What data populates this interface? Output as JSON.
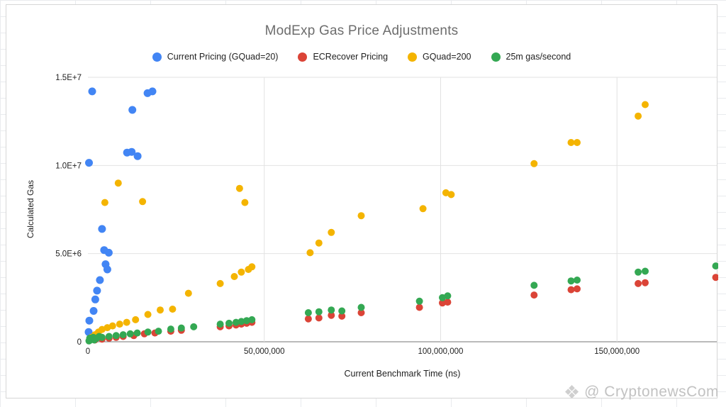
{
  "title": "ModExp Gas Price Adjustments",
  "watermark": {
    "icon": "❖",
    "text": "@ CryptonewsCom"
  },
  "chart_data": {
    "type": "scatter",
    "title": "ModExp Gas Price Adjustments",
    "xlabel": "Current Benchmark Time (ns)",
    "ylabel": "Calculated Gas",
    "xlim": [
      0,
      178300000
    ],
    "ylim": [
      0,
      15000000
    ],
    "grid": true,
    "legend_position": "top",
    "xticks": [
      {
        "v": 0,
        "label": "0"
      },
      {
        "v": 50000000,
        "label": "50,000,000"
      },
      {
        "v": 100000000,
        "label": "100,000,000"
      },
      {
        "v": 150000000,
        "label": "150,000,000"
      }
    ],
    "yticks": [
      {
        "v": 0,
        "label": "0"
      },
      {
        "v": 5000000,
        "label": "5.0E+6"
      },
      {
        "v": 10000000,
        "label": "1.0E+7"
      },
      {
        "v": 15000000,
        "label": "1.5E+7"
      }
    ],
    "series": [
      {
        "key": "current-pricing",
        "name": "Current Pricing (GQuad=20)",
        "color": "#4285f4",
        "radius": 5.5,
        "points": [
          [
            1200000.0,
            14200000.0
          ],
          [
            12600000.0,
            13150000.0
          ],
          [
            16900000.0,
            14100000.0
          ],
          [
            18300000.0,
            14200000.0
          ],
          [
            300000.0,
            10150000.0
          ],
          [
            11100000.0,
            10730000.0
          ],
          [
            12400000.0,
            10770000.0
          ],
          [
            14100000.0,
            10530000.0
          ],
          [
            4000000.0,
            6400000.0
          ],
          [
            4600000.0,
            5200000.0
          ],
          [
            5900000.0,
            5050000.0
          ],
          [
            5000000.0,
            4400000.0
          ],
          [
            5500000.0,
            4100000.0
          ],
          [
            3400000.0,
            3500000.0
          ],
          [
            2600000.0,
            2900000.0
          ],
          [
            2100000.0,
            2400000.0
          ],
          [
            1600000.0,
            1750000.0
          ],
          [
            400000.0,
            1200000.0
          ],
          [
            200000.0,
            550000.0
          ]
        ]
      },
      {
        "key": "ecrecover-pricing",
        "name": "ECRecover Pricing",
        "color": "#db4437",
        "radius": 5,
        "points": [
          [
            2000000.0,
            100000.0
          ],
          [
            4000000.0,
            150000.0
          ],
          [
            6000000.0,
            200000.0
          ],
          [
            8000000.0,
            250000.0
          ],
          [
            10000000.0,
            300000.0
          ],
          [
            13000000.0,
            350000.0
          ],
          [
            16000000.0,
            450000.0
          ],
          [
            19000000.0,
            500000.0
          ],
          [
            23500000.0,
            600000.0
          ],
          [
            26500000.0,
            650000.0
          ],
          [
            37500000.0,
            850000.0
          ],
          [
            40000000.0,
            900000.0
          ],
          [
            42000000.0,
            950000.0
          ],
          [
            43500000.0,
            1000000.0
          ],
          [
            45000000.0,
            1050000.0
          ],
          [
            46500000.0,
            1100000.0
          ],
          [
            62500000.0,
            1300000.0
          ],
          [
            65500000.0,
            1350000.0
          ],
          [
            69000000.0,
            1500000.0
          ],
          [
            72000000.0,
            1450000.0
          ],
          [
            77500000.0,
            1650000.0
          ],
          [
            94000000.0,
            1950000.0
          ],
          [
            100500000.0,
            2200000.0
          ],
          [
            102000000.0,
            2250000.0
          ],
          [
            126500000.0,
            2650000.0
          ],
          [
            137000000.0,
            2950000.0
          ],
          [
            138700000.0,
            3000000.0
          ],
          [
            156000000.0,
            3300000.0
          ],
          [
            158000000.0,
            3350000.0
          ],
          [
            178000000.0,
            3650000.0
          ]
        ]
      },
      {
        "key": "gquad-200",
        "name": "GQuad=200",
        "color": "#f4b400",
        "radius": 5,
        "points": [
          [
            1000000.0,
            250000.0
          ],
          [
            2000000.0,
            400000.0
          ],
          [
            3000000.0,
            550000.0
          ],
          [
            4000000.0,
            700000.0
          ],
          [
            5500000.0,
            800000.0
          ],
          [
            7000000.0,
            900000.0
          ],
          [
            9000000.0,
            1000000.0
          ],
          [
            11000000.0,
            1100000.0
          ],
          [
            13500000.0,
            1250000.0
          ],
          [
            17000000.0,
            1550000.0
          ],
          [
            20500000.0,
            1800000.0
          ],
          [
            24000000.0,
            1850000.0
          ],
          [
            28500000.0,
            2750000.0
          ],
          [
            37500000.0,
            3300000.0
          ],
          [
            41500000.0,
            3700000.0
          ],
          [
            43500000.0,
            3950000.0
          ],
          [
            45500000.0,
            4100000.0
          ],
          [
            46500000.0,
            4250000.0
          ],
          [
            4800000.0,
            7900000.0
          ],
          [
            8600000.0,
            9000000.0
          ],
          [
            15500000.0,
            7950000.0
          ],
          [
            43000000.0,
            8700000.0
          ],
          [
            44500000.0,
            7900000.0
          ],
          [
            63000000.0,
            5050000.0
          ],
          [
            65500000.0,
            5600000.0
          ],
          [
            69000000.0,
            6200000.0
          ],
          [
            77500000.0,
            7150000.0
          ],
          [
            95000000.0,
            7550000.0
          ],
          [
            101500000.0,
            8450000.0
          ],
          [
            103000000.0,
            8350000.0
          ],
          [
            126500000.0,
            10100000.0
          ],
          [
            137000000.0,
            11300000.0
          ],
          [
            138700000.0,
            11300000.0
          ],
          [
            156000000.0,
            12800000.0
          ],
          [
            158000000.0,
            13450000.0
          ]
        ]
      },
      {
        "key": "gas-25m-per-second",
        "name": "25m gas/second",
        "color": "#34a853",
        "radius": 5,
        "points": [
          [
            300000.0,
            50000.0
          ],
          [
            700000.0,
            100000.0
          ],
          [
            1200000.0,
            150000.0
          ],
          [
            1800000.0,
            100000.0
          ],
          [
            500000.0,
            200000.0
          ],
          [
            1500000.0,
            250000.0
          ],
          [
            2500000.0,
            200000.0
          ],
          [
            3200000.0,
            300000.0
          ],
          [
            4000000.0,
            250000.0
          ],
          [
            6000000.0,
            300000.0
          ],
          [
            8000000.0,
            350000.0
          ],
          [
            10000000.0,
            400000.0
          ],
          [
            12000000.0,
            450000.0
          ],
          [
            14000000.0,
            500000.0
          ],
          [
            17000000.0,
            550000.0
          ],
          [
            20000000.0,
            600000.0
          ],
          [
            23500000.0,
            720000.0
          ],
          [
            26500000.0,
            780000.0
          ],
          [
            30000000.0,
            850000.0
          ],
          [
            37500000.0,
            1000000.0
          ],
          [
            40000000.0,
            1050000.0
          ],
          [
            42000000.0,
            1100000.0
          ],
          [
            43500000.0,
            1150000.0
          ],
          [
            45000000.0,
            1200000.0
          ],
          [
            46500000.0,
            1250000.0
          ],
          [
            62500000.0,
            1650000.0
          ],
          [
            65500000.0,
            1700000.0
          ],
          [
            69000000.0,
            1800000.0
          ],
          [
            72000000.0,
            1750000.0
          ],
          [
            77500000.0,
            1950000.0
          ],
          [
            94000000.0,
            2300000.0
          ],
          [
            100500000.0,
            2500000.0
          ],
          [
            102000000.0,
            2600000.0
          ],
          [
            126500000.0,
            3200000.0
          ],
          [
            137000000.0,
            3450000.0
          ],
          [
            138700000.0,
            3500000.0
          ],
          [
            156000000.0,
            3950000.0
          ],
          [
            158000000.0,
            4000000.0
          ],
          [
            178000000.0,
            4300000.0
          ]
        ]
      }
    ]
  }
}
